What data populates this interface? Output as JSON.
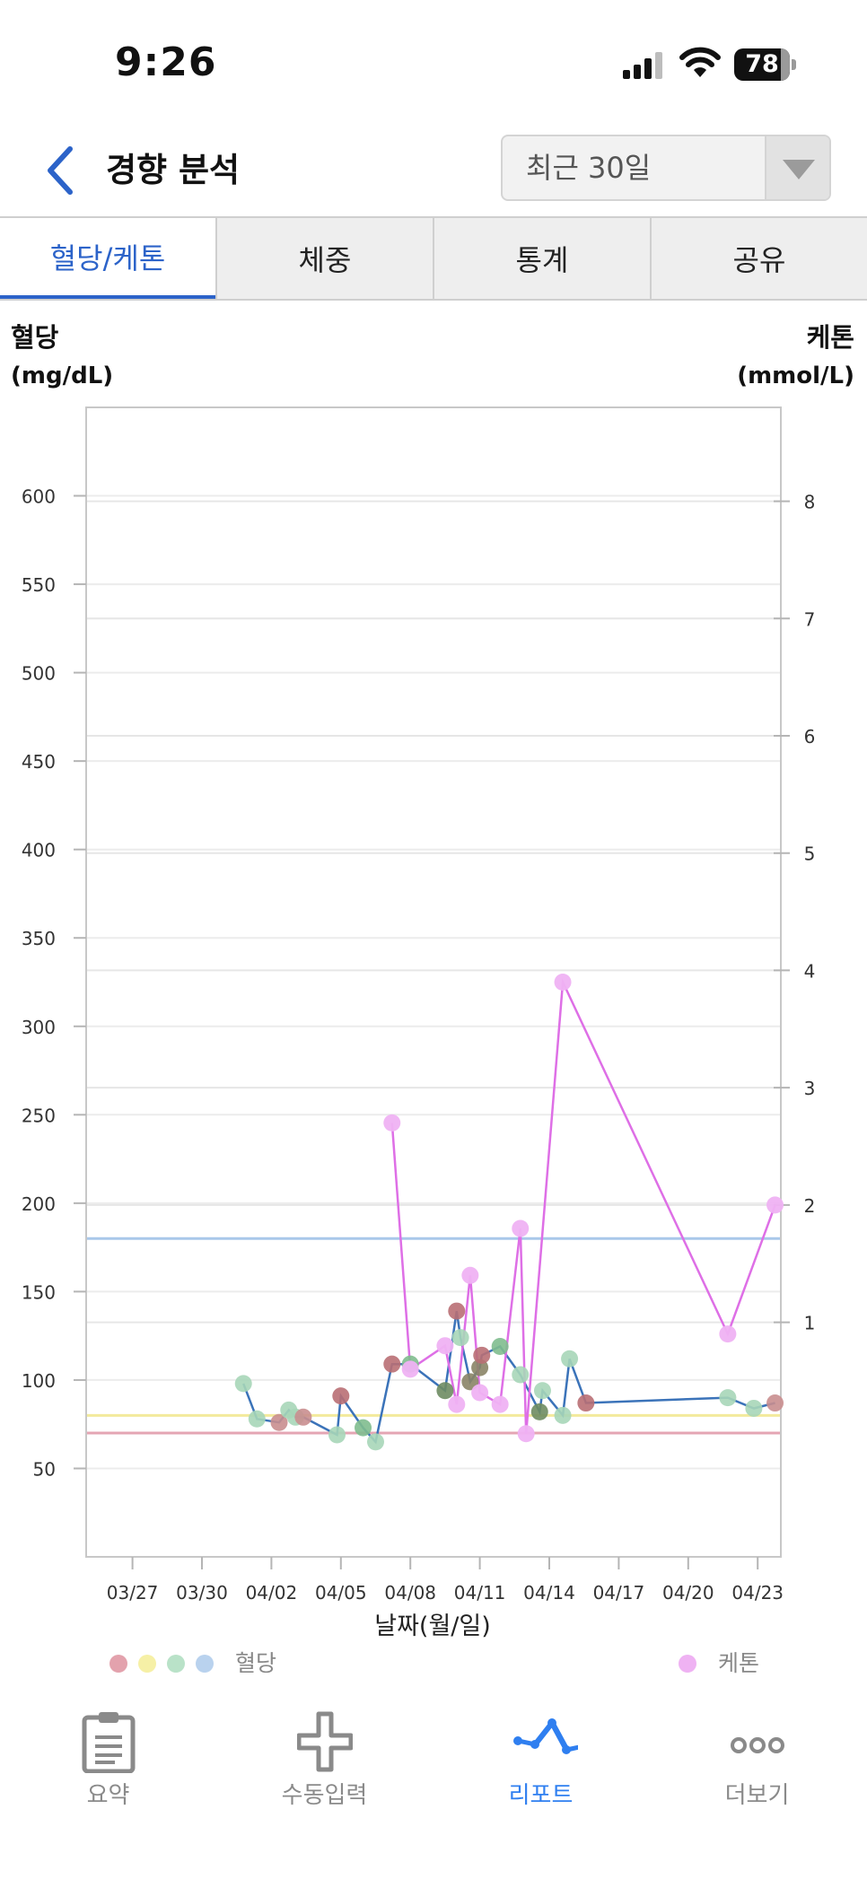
{
  "status_bar": {
    "time": "9:26",
    "battery": "78"
  },
  "header": {
    "title": "경향 분석",
    "period": "최근 30일"
  },
  "tabs": [
    {
      "label": "혈당/케톤",
      "active": true
    },
    {
      "label": "체중",
      "active": false
    },
    {
      "label": "통계",
      "active": false
    },
    {
      "label": "공유",
      "active": false
    }
  ],
  "chart_data": {
    "type": "scatter",
    "title": "",
    "ylabel_left": "혈당",
    "yunit_left": "(mg/dL)",
    "ylabel_right": "케톤",
    "yunit_right": "(mmol/L)",
    "xlabel": "날짜(월/일)",
    "xlim": [
      "03/25",
      "04/24"
    ],
    "ylim_left": [
      0,
      650
    ],
    "ylim_right": [
      -1,
      8.8
    ],
    "x_ticks": [
      "03/27",
      "03/30",
      "04/02",
      "04/05",
      "04/08",
      "04/11",
      "04/14",
      "04/17",
      "04/20",
      "04/23"
    ],
    "y_ticks_left": [
      50,
      100,
      150,
      200,
      250,
      300,
      350,
      400,
      450,
      500,
      550,
      600
    ],
    "y_ticks_right": [
      1,
      2,
      3,
      4,
      5,
      6,
      7,
      8
    ],
    "reference_lines": [
      {
        "y": 180,
        "color": "#a9c8ea"
      },
      {
        "y": 80,
        "color": "#f3ea9c"
      },
      {
        "y": 70,
        "color": "#e4a5b3"
      }
    ],
    "glucose_line_color": "#3b73b9",
    "ketone_line_color": "#de6fe6",
    "glucose": [
      {
        "x": "03/31 19:00",
        "y": 98,
        "color": "#a7d6b8"
      },
      {
        "x": "04/01 09:00",
        "y": 78,
        "color": "#a7d6b8"
      },
      {
        "x": "04/02 08:00",
        "y": 76,
        "color": "#c98e8f"
      },
      {
        "x": "04/02 18:00",
        "y": 83,
        "color": "#a7d6b8"
      },
      {
        "x": "04/03 01:00",
        "y": 79,
        "color": "#a7d6b8"
      },
      {
        "x": "04/03 09:00",
        "y": 79,
        "color": "#c98e8f"
      },
      {
        "x": "04/04 20:00",
        "y": 69,
        "color": "#a7d6b8"
      },
      {
        "x": "04/05 00:00",
        "y": 91,
        "color": "#b96f74"
      },
      {
        "x": "04/05 23:00",
        "y": 73,
        "color": "#7fbd8e"
      },
      {
        "x": "04/06 12:00",
        "y": 65,
        "color": "#a7d6b8"
      },
      {
        "x": "04/07 05:00",
        "y": 109,
        "color": "#b96f74"
      },
      {
        "x": "04/08 00:00",
        "y": 109,
        "color": "#7fbd8e"
      },
      {
        "x": "04/09 12:00",
        "y": 94,
        "color": "#6e8c62"
      },
      {
        "x": "04/10 00:00",
        "y": 139,
        "color": "#b96f74"
      },
      {
        "x": "04/10 04:00",
        "y": 124,
        "color": "#a7d6b8"
      },
      {
        "x": "04/10 14:00",
        "y": 99,
        "color": "#8a8466"
      },
      {
        "x": "04/11 00:00",
        "y": 107,
        "color": "#8a8466"
      },
      {
        "x": "04/11 02:00",
        "y": 114,
        "color": "#b96f74"
      },
      {
        "x": "04/11 21:00",
        "y": 119,
        "color": "#7fbd8e"
      },
      {
        "x": "04/12 18:00",
        "y": 103,
        "color": "#a7d6b8"
      },
      {
        "x": "04/13 14:00",
        "y": 82,
        "color": "#6e8c62"
      },
      {
        "x": "04/13 17:00",
        "y": 94,
        "color": "#a7d6b8"
      },
      {
        "x": "04/14 14:00",
        "y": 80,
        "color": "#a7d6b8"
      },
      {
        "x": "04/14 21:00",
        "y": 112,
        "color": "#a7d6b8"
      },
      {
        "x": "04/15 14:00",
        "y": 87,
        "color": "#b96f74"
      },
      {
        "x": "04/21 17:00",
        "y": 90,
        "color": "#a7d6b8"
      },
      {
        "x": "04/22 20:00",
        "y": 84,
        "color": "#a7d6b8"
      },
      {
        "x": "04/23 18:00",
        "y": 87,
        "color": "#c98e8f"
      }
    ],
    "ketone": [
      {
        "x": "04/07 05:00",
        "y": 2.7
      },
      {
        "x": "04/08 00:00",
        "y": 0.6
      },
      {
        "x": "04/09 12:00",
        "y": 0.8
      },
      {
        "x": "04/10 00:00",
        "y": 0.3
      },
      {
        "x": "04/10 14:00",
        "y": 1.4
      },
      {
        "x": "04/11 00:00",
        "y": 0.4
      },
      {
        "x": "04/11 21:00",
        "y": 0.3
      },
      {
        "x": "04/12 18:00",
        "y": 1.8
      },
      {
        "x": "04/13 00:00",
        "y": 0.05
      },
      {
        "x": "04/14 14:00",
        "y": 3.9
      },
      {
        "x": "04/21 17:00",
        "y": 0.9
      },
      {
        "x": "04/23 18:00",
        "y": 2.0
      }
    ]
  },
  "legend": {
    "glucose_colors": [
      "#e3a2ad",
      "#f6f0a6",
      "#b9e2c8",
      "#b9d2ee"
    ],
    "glucose_label": "혈당",
    "ketone_color": "#efb2f3",
    "ketone_label": "케톤"
  },
  "tab_bar": [
    {
      "label": "요약",
      "icon": "clipboard-icon",
      "active": false
    },
    {
      "label": "수동입력",
      "icon": "plus-icon",
      "active": false
    },
    {
      "label": "리포트",
      "icon": "report-chart-icon",
      "active": true
    },
    {
      "label": "더보기",
      "icon": "more-icon",
      "active": false
    }
  ]
}
